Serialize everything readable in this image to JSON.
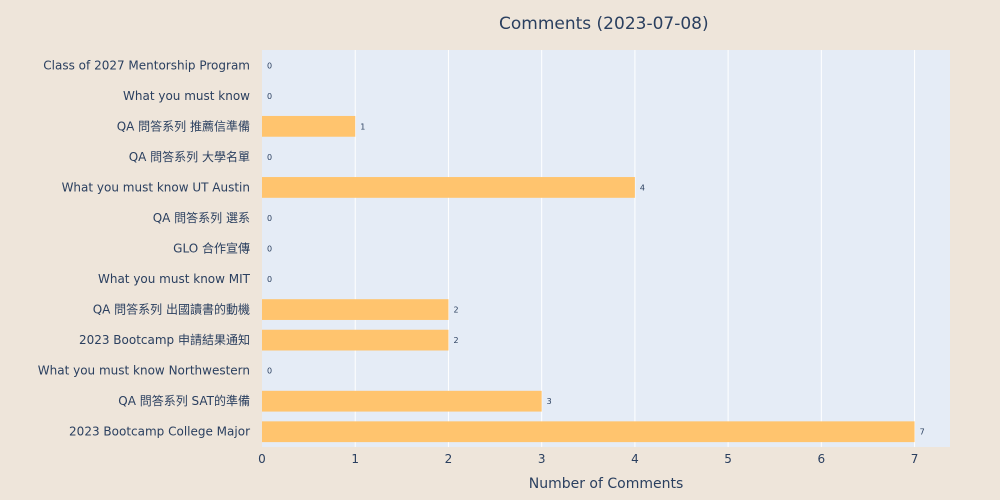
{
  "chart_data": {
    "type": "bar",
    "orientation": "horizontal",
    "title": "Comments (2023-07-08)",
    "xlabel": "Number of Comments",
    "ylabel": "",
    "xlim": [
      0,
      7.38
    ],
    "x_ticks": [
      0,
      1,
      2,
      3,
      4,
      5,
      6,
      7
    ],
    "grid": true,
    "categories": [
      "Class of 2027 Mentorship Program",
      "What you must know",
      "QA 問答系列 推薦信準備",
      "QA 問答系列 大學名單",
      "What you must know UT Austin",
      "QA 問答系列 選系",
      "GLO 合作宣傳",
      "What you must know MIT",
      "QA 問答系列 出國讀書的動機",
      "2023 Bootcamp 申請結果通知",
      "What you must know Northwestern",
      "QA 問答系列 SAT的準備",
      "2023 Bootcamp College Major"
    ],
    "values": [
      0,
      0,
      1,
      0,
      4,
      0,
      0,
      0,
      2,
      2,
      0,
      3,
      7
    ],
    "colors": {
      "bar": "#FFC46E",
      "plot_bg": "#E5ECF6",
      "page_bg": "#EEE5DA",
      "grid": "#FFFFFF",
      "text": "#2A3F5F"
    }
  }
}
